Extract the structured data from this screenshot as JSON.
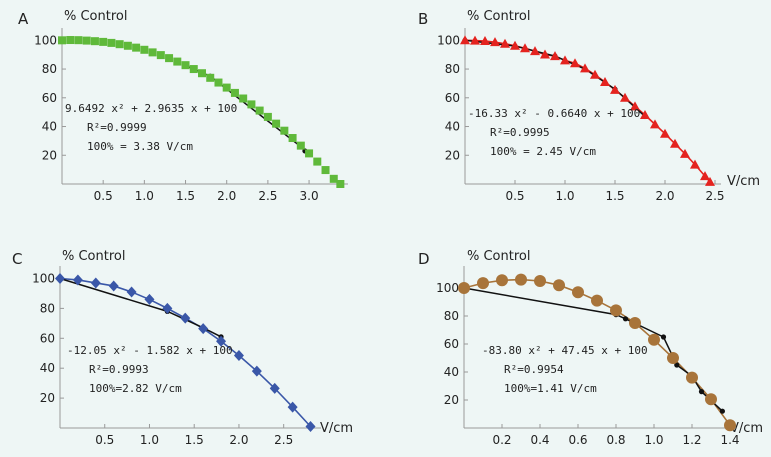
{
  "colors": {
    "background": "#eef6f5",
    "axis": "#999999",
    "fit_line": "#111111"
  },
  "chart_data": [
    {
      "panel": "A",
      "type": "scatter",
      "ylabel": "% Control",
      "xlabel": "",
      "xlim": [
        0,
        3.4
      ],
      "ylim": [
        0,
        103
      ],
      "xticks": [
        0.5,
        1.0,
        1.5,
        2.0,
        2.5,
        3.0
      ],
      "xtick_labels": [
        "0.5",
        "1.0",
        "1.5",
        "2.0",
        "2.5",
        "3.0"
      ],
      "yticks": [
        20,
        40,
        60,
        80,
        100
      ],
      "ytick_labels": [
        "20",
        "40",
        "60",
        "80",
        "100"
      ],
      "marker": "square",
      "color": "#5fb93a",
      "marker_line": false,
      "series_x": [
        0,
        0.1,
        0.2,
        0.3,
        0.4,
        0.5,
        0.6,
        0.7,
        0.8,
        0.9,
        1.0,
        1.1,
        1.2,
        1.3,
        1.4,
        1.5,
        1.6,
        1.7,
        1.8,
        1.9,
        2.0,
        2.1,
        2.2,
        2.3,
        2.4,
        2.5,
        2.6,
        2.7,
        2.8,
        2.9,
        3.0,
        3.1,
        3.2,
        3.3,
        3.38
      ],
      "series_y": [
        100,
        100.2,
        100.1,
        99.8,
        99.4,
        98.9,
        98.2,
        97.3,
        96.2,
        94.9,
        93.4,
        91.6,
        89.7,
        87.6,
        85.2,
        82.7,
        80.0,
        77.1,
        73.9,
        70.6,
        67.1,
        63.4,
        59.5,
        55.4,
        51.1,
        46.7,
        42.0,
        37.1,
        32.0,
        26.7,
        21.3,
        15.6,
        9.7,
        3.6,
        0
      ],
      "fit_x": [
        1.5,
        1.8,
        2.9,
        2.95
      ],
      "fit_y": [
        82.5,
        75.0,
        26.0,
        23.0
      ],
      "equation": "9.6492 x² + 2.9635 x + 100",
      "r2": "R²=0.9999",
      "unit": "100% = 3.38 V/cm"
    },
    {
      "panel": "B",
      "type": "scatter",
      "ylabel": "% Control",
      "xlabel": "V/cm",
      "xlim": [
        0,
        2.5
      ],
      "ylim": [
        0,
        103
      ],
      "xticks": [
        0.5,
        1.0,
        1.5,
        2.0,
        2.5
      ],
      "xtick_labels": [
        "0.5",
        "1.0",
        "1.5",
        "2.0",
        "2.5"
      ],
      "yticks": [
        20,
        40,
        60,
        80,
        100
      ],
      "ytick_labels": [
        "20",
        "40",
        "60",
        "80",
        "100"
      ],
      "marker": "triangle",
      "color": "#e4231f",
      "marker_line": true,
      "series_x": [
        0,
        0.1,
        0.2,
        0.3,
        0.4,
        0.5,
        0.6,
        0.7,
        0.8,
        0.9,
        1.0,
        1.1,
        1.2,
        1.3,
        1.4,
        1.5,
        1.6,
        1.7,
        1.8,
        1.9,
        2.0,
        2.1,
        2.2,
        2.3,
        2.4,
        2.45
      ],
      "series_y": [
        100,
        99.8,
        99.5,
        98.7,
        97.6,
        96.2,
        94.5,
        92.5,
        90.1,
        89.0,
        86.0,
        84.0,
        80.5,
        76.0,
        71.0,
        65.5,
        60.0,
        54.0,
        48.0,
        41.5,
        35.0,
        28.0,
        21.0,
        13.5,
        5.5,
        1.5
      ],
      "fit_x": [
        0,
        0.5,
        0.9,
        1.2,
        1.5,
        1.8
      ],
      "fit_y": [
        100,
        96.0,
        89.0,
        80.0,
        66.0,
        47.0
      ],
      "equation": "-16.33 x² - 0.6640 x + 100",
      "r2": "R²=0.9995",
      "unit": "100% = 2.45 V/cm"
    },
    {
      "panel": "C",
      "type": "scatter",
      "ylabel": "% Control",
      "xlabel": "V/cm",
      "xlim": [
        0,
        2.85
      ],
      "ylim": [
        0,
        103
      ],
      "xticks": [
        0.5,
        1.0,
        1.5,
        2.0,
        2.5
      ],
      "xtick_labels": [
        "0.5",
        "1.0",
        "1.5",
        "2.0",
        "2.5"
      ],
      "yticks": [
        20,
        40,
        60,
        80,
        100
      ],
      "ytick_labels": [
        "20",
        "40",
        "60",
        "80",
        "100"
      ],
      "marker": "diamond",
      "color": "#3a57a8",
      "marker_line": true,
      "series_x": [
        0,
        0.2,
        0.4,
        0.6,
        0.8,
        1.0,
        1.2,
        1.4,
        1.6,
        1.8,
        2.0,
        2.2,
        2.4,
        2.6,
        2.8
      ],
      "series_y": [
        100,
        99,
        97,
        95,
        91,
        86,
        80,
        73.5,
        66.5,
        58,
        48.5,
        38,
        26.5,
        14,
        1
      ],
      "fit_x": [
        0,
        1.2,
        1.6,
        1.8
      ],
      "fit_y": [
        100,
        78,
        67,
        61
      ],
      "equation": "-12.05 x² - 1.582 x + 100",
      "r2": "R²=0.9993",
      "unit": "100%=2.82 V/cm"
    },
    {
      "panel": "D",
      "type": "scatter",
      "ylabel": "% Control",
      "xlabel": "V/cm",
      "xlim": [
        0,
        1.4
      ],
      "ylim": [
        0,
        110
      ],
      "xticks": [
        0.2,
        0.4,
        0.6,
        0.8,
        1.0,
        1.2,
        1.4
      ],
      "xtick_labels": [
        "0.2",
        "0.4",
        "0.6",
        "0.8",
        "1.0",
        "1.2",
        "1.4"
      ],
      "yticks": [
        20,
        40,
        60,
        80,
        100
      ],
      "ytick_labels": [
        "20",
        "40",
        "60",
        "80",
        "100"
      ],
      "marker": "circle",
      "color": "#a8743a",
      "marker_line": true,
      "series_x": [
        0,
        0.1,
        0.2,
        0.3,
        0.4,
        0.5,
        0.6,
        0.7,
        0.8,
        0.9,
        1.0,
        1.1,
        1.2,
        1.3,
        1.4
      ],
      "series_y": [
        100,
        103.5,
        105.5,
        106,
        105,
        102,
        97,
        91,
        84,
        75,
        63,
        50,
        36,
        20.5,
        2
      ],
      "fit_x": [
        0,
        0.8,
        0.85,
        1.05,
        1.12,
        1.2,
        1.25,
        1.36
      ],
      "fit_y": [
        100,
        81,
        78,
        65,
        45,
        37,
        26,
        12
      ],
      "equation": "-83.80 x² + 47.45 x + 100",
      "r2": "R²=0.9954",
      "unit": "100%=1.41 V/cm"
    }
  ]
}
